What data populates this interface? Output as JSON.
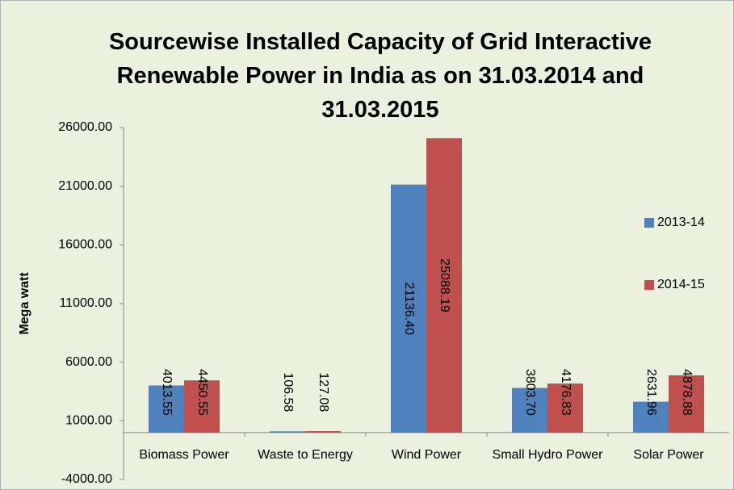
{
  "chart_data": {
    "type": "bar",
    "title": "Sourcewise Installed Capacity of Grid Interactive Renewable Power in India as on 31.03.2014 and 31.03.2015",
    "y_label": "Mega watt",
    "categories": [
      "Biomass Power",
      "Waste to Energy",
      "Wind Power",
      "Small Hydro Power",
      "Solar Power"
    ],
    "series": [
      {
        "name": "2013-14",
        "color": "#4f81bd",
        "values": [
          4013.55,
          106.58,
          21136.4,
          3803.7,
          2631.96
        ],
        "value_labels": [
          "4013.55",
          "106.58",
          "21136.40",
          "3803.70",
          "2631.96"
        ]
      },
      {
        "name": "2014-15",
        "color": "#c0504d",
        "values": [
          4450.55,
          127.08,
          25088.19,
          4176.83,
          4878.88
        ],
        "value_labels": [
          "4450.55",
          "127.08",
          "25088.19",
          "4176.83",
          "4878.88"
        ]
      }
    ],
    "ylim": [
      -4000,
      26000
    ],
    "yticks": [
      {
        "value": -4000,
        "label": "-4000.00"
      },
      {
        "value": 1000,
        "label": "1000.00"
      },
      {
        "value": 6000,
        "label": "6000.00"
      },
      {
        "value": 11000,
        "label": "11000.00"
      },
      {
        "value": 16000,
        "label": "16000.00"
      },
      {
        "value": 21000,
        "label": "21000.00"
      },
      {
        "value": 26000,
        "label": "26000.00"
      }
    ],
    "legend": "right"
  }
}
